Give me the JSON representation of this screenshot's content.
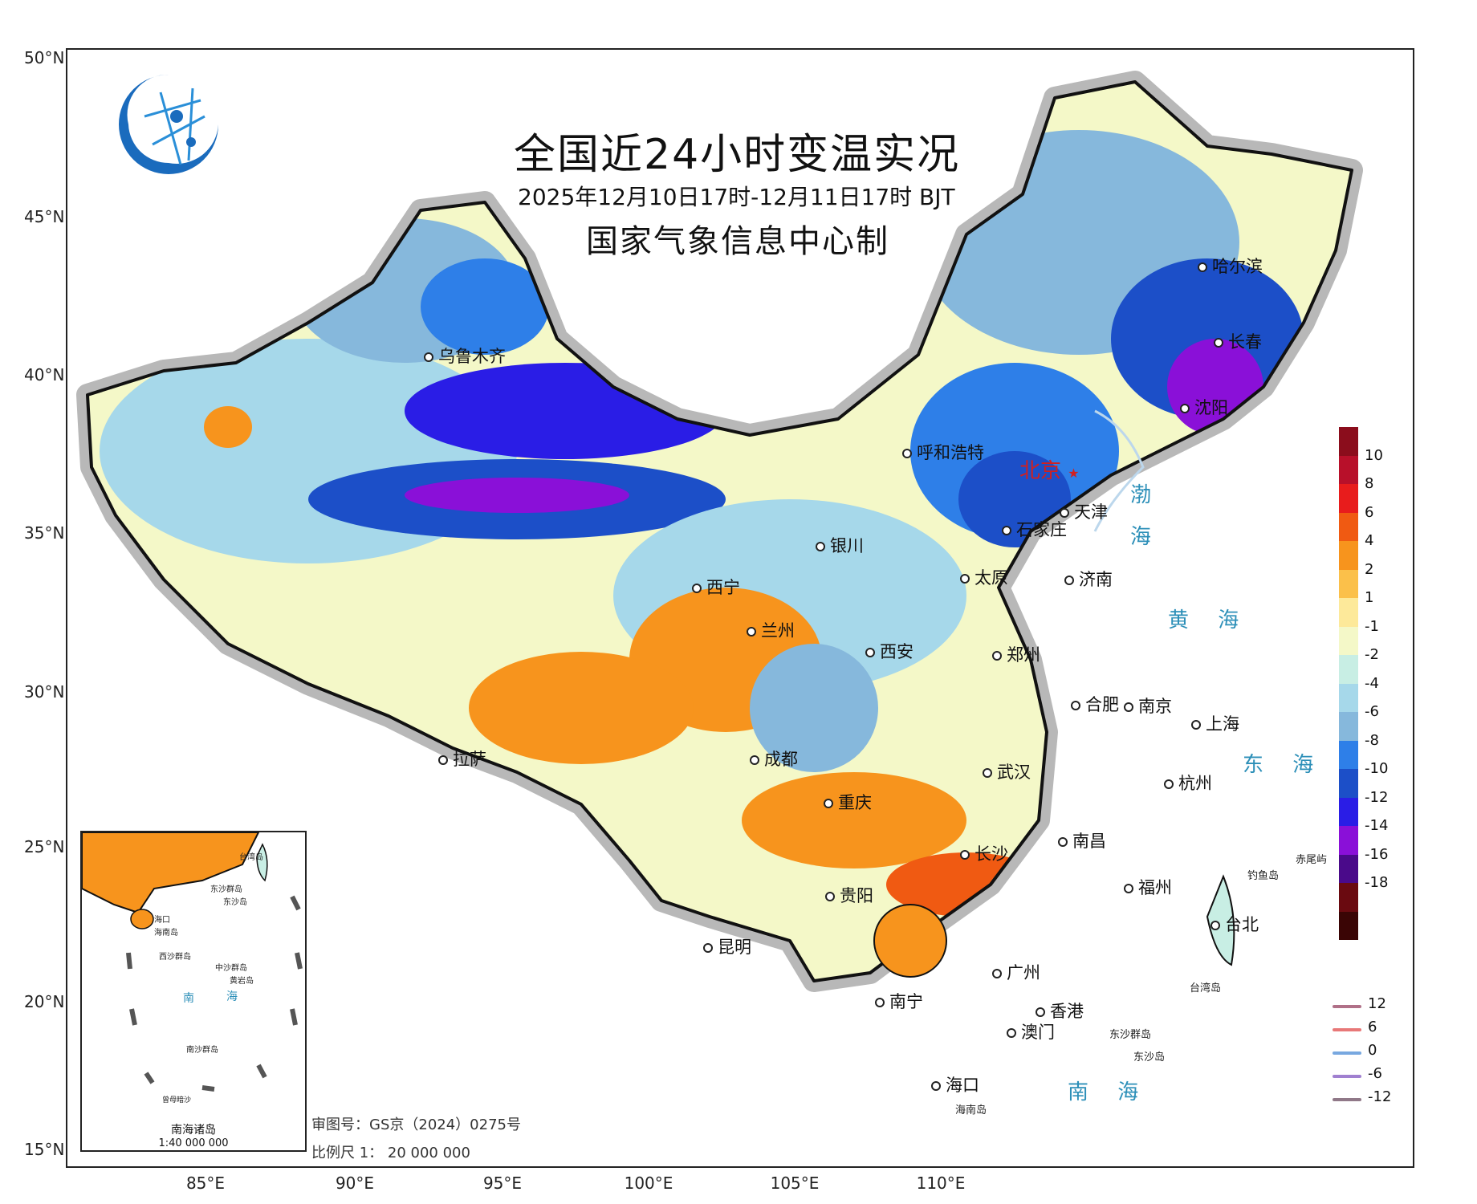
{
  "title": "全国近24小时变温实况",
  "subtitle": "2025年12月10日17时-12月11日17时 BJT",
  "producer": "国家气象信息中心制",
  "axes": {
    "latitudes": [
      "50°N",
      "45°N",
      "40°N",
      "35°N",
      "30°N",
      "25°N",
      "20°N",
      "15°N"
    ],
    "longitudes": [
      "85°E",
      "90°E",
      "95°E",
      "100°E",
      "105°E",
      "110°E"
    ]
  },
  "cities": [
    {
      "name": "北京",
      "capital": true
    },
    {
      "name": "天津"
    },
    {
      "name": "石家庄"
    },
    {
      "name": "太原"
    },
    {
      "name": "济南"
    },
    {
      "name": "郑州"
    },
    {
      "name": "呼和浩特"
    },
    {
      "name": "哈尔滨"
    },
    {
      "name": "长春"
    },
    {
      "name": "沈阳"
    },
    {
      "name": "乌鲁木齐"
    },
    {
      "name": "银川"
    },
    {
      "name": "西宁"
    },
    {
      "name": "兰州"
    },
    {
      "name": "西安"
    },
    {
      "name": "拉萨"
    },
    {
      "name": "成都"
    },
    {
      "name": "重庆"
    },
    {
      "name": "贵阳"
    },
    {
      "name": "昆明"
    },
    {
      "name": "南宁"
    },
    {
      "name": "广州"
    },
    {
      "name": "香港"
    },
    {
      "name": "澳门"
    },
    {
      "name": "海口"
    },
    {
      "name": "长沙"
    },
    {
      "name": "武汉"
    },
    {
      "name": "南昌"
    },
    {
      "name": "合肥"
    },
    {
      "name": "南京"
    },
    {
      "name": "上海"
    },
    {
      "name": "杭州"
    },
    {
      "name": "福州"
    },
    {
      "name": "台北"
    }
  ],
  "seas": [
    "渤",
    "海",
    "黄 海",
    "东 海",
    "南 海"
  ],
  "small_labels": [
    "赤尾屿",
    "钓鱼岛",
    "台湾岛",
    "东沙群岛",
    "东沙岛",
    "海南岛"
  ],
  "legend": {
    "labels": [
      "10",
      "8",
      "6",
      "4",
      "2",
      "1",
      "-1",
      "-2",
      "-4",
      "-6",
      "-8",
      "-10",
      "-12",
      "-14",
      "-16",
      "-18"
    ],
    "colors": [
      "#8b0d1c",
      "#b8102a",
      "#e81c1c",
      "#f05a12",
      "#f7941d",
      "#fbc04a",
      "#fde99a",
      "#f4f8c8",
      "#c8eee4",
      "#a6d8ea",
      "#86b8dc",
      "#2e7fe8",
      "#1c4fc8",
      "#2a1de6",
      "#8a10d8",
      "#4a0a8a",
      "#6a0a10",
      "#3a0505"
    ]
  },
  "line_legend": [
    {
      "label": "12",
      "color": "#b07088"
    },
    {
      "label": "6",
      "color": "#e87878"
    },
    {
      "label": "0",
      "color": "#78a8e0"
    },
    {
      "label": "-6",
      "color": "#a080d0"
    },
    {
      "label": "-12",
      "color": "#907888"
    }
  ],
  "inset": {
    "title": "南海诸岛",
    "scale": "1:40 000 000",
    "labels": [
      "台湾岛",
      "东沙群岛",
      "东沙岛",
      "海口",
      "海南岛",
      "西沙群岛",
      "中沙群岛",
      "黄岩岛",
      "南",
      "海",
      "南沙群岛",
      "曾母暗沙"
    ]
  },
  "review_no": "审图号：GS京（2024）0275号",
  "scale_text": "比例尺 1： 20 000 000"
}
